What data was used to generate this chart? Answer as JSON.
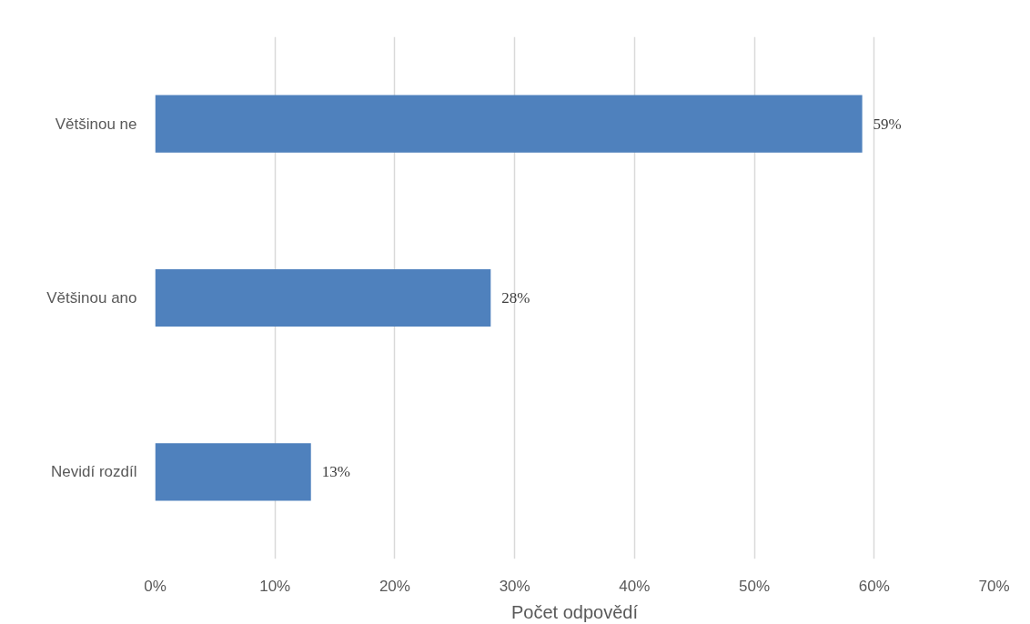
{
  "chart_data": {
    "type": "bar",
    "orientation": "horizontal",
    "categories": [
      "Většinou ne",
      "Většinou ano",
      "Nevidí rozdíl"
    ],
    "values": [
      59,
      28,
      13
    ],
    "color": "#4f81bd",
    "value_labels": [
      "59%",
      "28%",
      "13%"
    ],
    "xlabel": "Počet odpovědí",
    "xlim": [
      0,
      70
    ],
    "xticks": [
      {
        "value": 0,
        "label": "0%"
      },
      {
        "value": 10,
        "label": "10%"
      },
      {
        "value": 20,
        "label": "20%"
      },
      {
        "value": 30,
        "label": "30%"
      },
      {
        "value": 40,
        "label": "40%"
      },
      {
        "value": 50,
        "label": "50%"
      },
      {
        "value": 60,
        "label": "60%"
      },
      {
        "value": 70,
        "label": "70%"
      }
    ],
    "grid": "x"
  }
}
